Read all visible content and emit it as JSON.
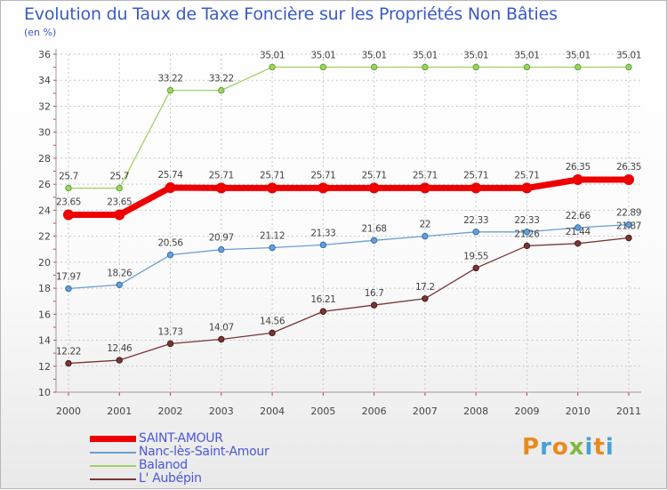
{
  "chart_data": {
    "type": "line",
    "title": "Evolution du Taux de Taxe Foncière sur les Propriétés Non Bâties",
    "ylabel": "(en %)",
    "ylim": [
      10,
      36
    ],
    "yticks": [
      10,
      12,
      14,
      16,
      18,
      20,
      22,
      24,
      26,
      28,
      30,
      32,
      34,
      36
    ],
    "categories": [
      "2000",
      "2001",
      "2002",
      "2003",
      "2004",
      "2005",
      "2006",
      "2007",
      "2008",
      "2009",
      "2010",
      "2011"
    ],
    "series": [
      {
        "name": "SAINT-AMOUR",
        "color": "#ee0000",
        "values": [
          23.65,
          23.65,
          25.74,
          25.71,
          25.71,
          25.71,
          25.71,
          25.71,
          25.71,
          25.71,
          26.35,
          26.35
        ],
        "labels": [
          "23.65",
          "23.65",
          "25.74",
          "25.71",
          "25.71",
          "25.71",
          "25.71",
          "25.71",
          "25.71",
          "25.71",
          "26.35",
          "26.35"
        ]
      },
      {
        "name": "Nanc-lès-Saint-Amour",
        "color": "#6a9fd4",
        "values": [
          17.97,
          18.26,
          20.56,
          20.97,
          21.12,
          21.33,
          21.68,
          22,
          22.33,
          22.33,
          22.66,
          22.89
        ],
        "labels": [
          "17.97",
          "18.26",
          "20.56",
          "20.97",
          "21.12",
          "21.33",
          "21.68",
          "22",
          "22.33",
          "22.33",
          "22.66",
          "22.89"
        ]
      },
      {
        "name": "Balanod",
        "color": "#9fd16a",
        "values": [
          25.7,
          25.7,
          33.22,
          33.22,
          35.01,
          35.01,
          35.01,
          35.01,
          35.01,
          35.01,
          35.01,
          35.01
        ],
        "labels": [
          "25.7",
          "25.7",
          "33.22",
          "33.22",
          "35.01",
          "35.01",
          "35.01",
          "35.01",
          "35.01",
          "35.01",
          "35.01",
          "35.01"
        ]
      },
      {
        "name": "L' Aubépin",
        "color": "#7a3535",
        "values": [
          12.22,
          12.46,
          13.73,
          14.07,
          14.56,
          16.21,
          16.7,
          17.2,
          19.55,
          21.26,
          21.44,
          21.87
        ],
        "labels": [
          "12.22",
          "12.46",
          "13.73",
          "14.07",
          "14.56",
          "16.21",
          "16.7",
          "17.2",
          "19.55",
          "21.26",
          "21.44",
          "21.87"
        ]
      }
    ]
  },
  "logo": {
    "text": "Proxiti",
    "letters": [
      "P",
      "r",
      "o",
      "x",
      "i",
      "t",
      "i"
    ]
  }
}
